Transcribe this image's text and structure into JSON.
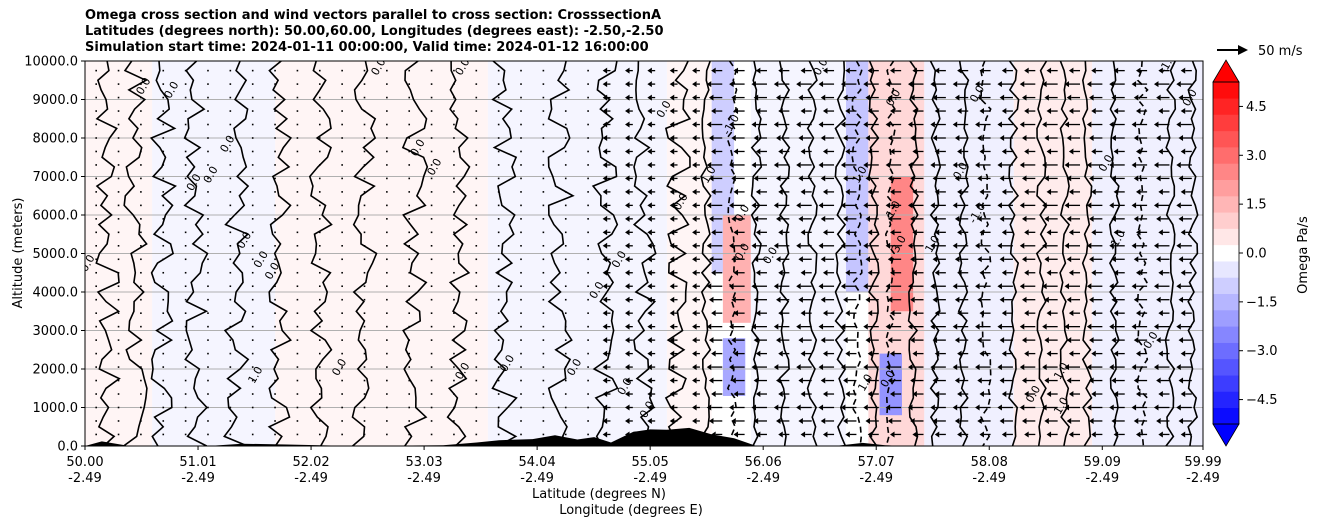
{
  "chart_data": {
    "type": "heatmap",
    "title": [
      "Omega cross section and wind vectors parallel to cross section: CrosssectionA",
      "Latitudes (degrees north): 50.00,60.00, Longitudes (degrees east): -2.50,-2.50",
      "Simulation start time: 2024-01-11 00:00:00, Valid time: 2024-01-12 16:00:00"
    ],
    "xlabel": [
      "Latitude (degrees N)",
      "Longitude (degrees E)"
    ],
    "ylabel": "Altitude (meters)",
    "x_range": [
      50.0,
      59.99
    ],
    "ylim": [
      0,
      10000
    ],
    "x_ticks": [
      {
        "lat": "50.00",
        "lon": "-2.49",
        "value": 50.0
      },
      {
        "lat": "51.01",
        "lon": "-2.49",
        "value": 51.01
      },
      {
        "lat": "52.02",
        "lon": "-2.49",
        "value": 52.02
      },
      {
        "lat": "53.03",
        "lon": "-2.49",
        "value": 53.03
      },
      {
        "lat": "54.04",
        "lon": "-2.49",
        "value": 54.04
      },
      {
        "lat": "55.05",
        "lon": "-2.49",
        "value": 55.05
      },
      {
        "lat": "56.06",
        "lon": "-2.49",
        "value": 56.06
      },
      {
        "lat": "57.07",
        "lon": "-2.49",
        "value": 57.07
      },
      {
        "lat": "58.08",
        "lon": "-2.49",
        "value": 58.08
      },
      {
        "lat": "59.09",
        "lon": "-2.49",
        "value": 59.09
      },
      {
        "lat": "59.99",
        "lon": "-2.49",
        "value": 59.99
      }
    ],
    "y_ticks": [
      {
        "label": "10000.0",
        "value": 10000
      },
      {
        "label": "9000.0",
        "value": 9000
      },
      {
        "label": "8000.0",
        "value": 8000
      },
      {
        "label": "7000.0",
        "value": 7000
      },
      {
        "label": "6000.0",
        "value": 6000
      },
      {
        "label": "5000.0",
        "value": 5000
      },
      {
        "label": "4000.0",
        "value": 4000
      },
      {
        "label": "3000.0",
        "value": 3000
      },
      {
        "label": "2000.0",
        "value": 2000
      },
      {
        "label": "1000.0",
        "value": 1000
      },
      {
        "label": "0.0",
        "value": 0
      }
    ],
    "grid": "horizontal",
    "colorbar": {
      "label": "Omega Pa/s",
      "range": [
        -5.25,
        5.25
      ],
      "ticks": [
        {
          "label": "4.5",
          "value": 4.5
        },
        {
          "label": "3.0",
          "value": 3.0
        },
        {
          "label": "1.5",
          "value": 1.5
        },
        {
          "label": "0.0",
          "value": 0.0
        },
        {
          "label": "−1.5",
          "value": -1.5
        },
        {
          "label": "−3.0",
          "value": -3.0
        },
        {
          "label": "−4.5",
          "value": -4.5
        }
      ],
      "colormap": "bwr",
      "extend": "both",
      "low_color": "#0000ff",
      "high_color": "#ff0000"
    },
    "quiver_key": {
      "label": "50 m/s",
      "value": 50
    },
    "omega_cells": [
      {
        "x0": 50.0,
        "x1": 50.6,
        "y0": 0,
        "y1": 10000,
        "value": 0.2
      },
      {
        "x0": 50.6,
        "x1": 51.7,
        "y0": 0,
        "y1": 10000,
        "value": -0.2
      },
      {
        "x0": 51.7,
        "x1": 53.6,
        "y0": 0,
        "y1": 10000,
        "value": 0.2
      },
      {
        "x0": 53.6,
        "x1": 55.2,
        "y0": 0,
        "y1": 10000,
        "value": -0.2
      },
      {
        "x0": 55.2,
        "x1": 55.6,
        "y0": 0,
        "y1": 10000,
        "value": 0.2
      },
      {
        "x0": 55.6,
        "x1": 55.8,
        "y0": 4500,
        "y1": 10000,
        "value": -1.0
      },
      {
        "x0": 55.7,
        "x1": 55.95,
        "y0": 3200,
        "y1": 6000,
        "value": 1.6
      },
      {
        "x0": 55.7,
        "x1": 55.9,
        "y0": 1300,
        "y1": 2800,
        "value": -1.8
      },
      {
        "x0": 55.95,
        "x1": 56.8,
        "y0": 0,
        "y1": 10000,
        "value": -0.2
      },
      {
        "x0": 56.8,
        "x1": 57.0,
        "y0": 4000,
        "y1": 10000,
        "value": -1.2
      },
      {
        "x0": 57.0,
        "x1": 57.5,
        "y0": 0,
        "y1": 10000,
        "value": 0.8
      },
      {
        "x0": 57.2,
        "x1": 57.4,
        "y0": 3500,
        "y1": 7000,
        "value": 2.5
      },
      {
        "x0": 57.1,
        "x1": 57.3,
        "y0": 800,
        "y1": 2400,
        "value": -2.2
      },
      {
        "x0": 57.5,
        "x1": 58.3,
        "y0": 0,
        "y1": 10000,
        "value": -0.3
      },
      {
        "x0": 58.3,
        "x1": 59.0,
        "y0": 0,
        "y1": 10000,
        "value": 0.4
      },
      {
        "x0": 59.0,
        "x1": 59.99,
        "y0": 0,
        "y1": 10000,
        "value": -0.3
      }
    ],
    "contour_labels": [
      {
        "text": "0.0",
        "x": 50.05,
        "y": 4700
      },
      {
        "text": "0.0",
        "x": 50.55,
        "y": 9300
      },
      {
        "text": "0.0",
        "x": 50.8,
        "y": 9200
      },
      {
        "text": "0.0",
        "x": 51.0,
        "y": 6800
      },
      {
        "text": "0.0",
        "x": 51.15,
        "y": 7000
      },
      {
        "text": "0.0",
        "x": 51.3,
        "y": 7800
      },
      {
        "text": "0.0",
        "x": 51.45,
        "y": 5300
      },
      {
        "text": "0.0",
        "x": 51.6,
        "y": 4800
      },
      {
        "text": "0.0",
        "x": 51.7,
        "y": 4500
      },
      {
        "text": "1.0",
        "x": 51.55,
        "y": 1800
      },
      {
        "text": "0.0",
        "x": 52.3,
        "y": 2000
      },
      {
        "text": "0.0",
        "x": 52.65,
        "y": 9800
      },
      {
        "text": "0.0",
        "x": 53.0,
        "y": 7700
      },
      {
        "text": "0.0",
        "x": 53.15,
        "y": 7200
      },
      {
        "text": "0.0",
        "x": 53.4,
        "y": 9800
      },
      {
        "text": "0.0",
        "x": 53.4,
        "y": 1900
      },
      {
        "text": "0.0",
        "x": 53.8,
        "y": 2100
      },
      {
        "text": "0.0",
        "x": 54.4,
        "y": 2000
      },
      {
        "text": "0.0",
        "x": 54.6,
        "y": 4000
      },
      {
        "text": "0.0",
        "x": 54.8,
        "y": 4800
      },
      {
        "text": "0.0",
        "x": 54.85,
        "y": 1500
      },
      {
        "text": "0.0",
        "x": 55.05,
        "y": 900
      },
      {
        "text": "0.0",
        "x": 55.2,
        "y": 8700
      },
      {
        "text": "0.0",
        "x": 55.35,
        "y": 6300
      },
      {
        "text": "1.0",
        "x": 55.6,
        "y": 7000
      },
      {
        "text": "0.0",
        "x": 55.9,
        "y": 6000
      },
      {
        "text": "0.0",
        "x": 55.9,
        "y": 5000
      },
      {
        "text": "-1.0",
        "x": 55.8,
        "y": 8300
      },
      {
        "text": "0.0",
        "x": 56.15,
        "y": 4900
      },
      {
        "text": "0.0",
        "x": 56.6,
        "y": 9800
      },
      {
        "text": "1.0",
        "x": 56.95,
        "y": 7000
      },
      {
        "text": "0.0",
        "x": 57.25,
        "y": 9000
      },
      {
        "text": "1.0",
        "x": 57.25,
        "y": 6100
      },
      {
        "text": "3.0",
        "x": 57.3,
        "y": 5200
      },
      {
        "text": "1.0",
        "x": 57.6,
        "y": 5200
      },
      {
        "text": "1.0",
        "x": 57.0,
        "y": 1600
      },
      {
        "text": "0.0",
        "x": 57.2,
        "y": 1700
      },
      {
        "text": "-1.0",
        "x": 58.0,
        "y": 6000
      },
      {
        "text": "0.0",
        "x": 57.85,
        "y": 7100
      },
      {
        "text": "0.0",
        "x": 58.0,
        "y": 9100
      },
      {
        "text": "0.0",
        "x": 58.5,
        "y": 1300
      },
      {
        "text": "1.0",
        "x": 58.75,
        "y": 1900
      },
      {
        "text": "1.0",
        "x": 58.75,
        "y": 1000
      },
      {
        "text": "0.0",
        "x": 59.15,
        "y": 7300
      },
      {
        "text": "-1.0",
        "x": 59.25,
        "y": 5300
      },
      {
        "text": "0.0",
        "x": 59.55,
        "y": 2700
      },
      {
        "text": "-1.0",
        "x": 59.7,
        "y": 9900
      },
      {
        "text": "0.0",
        "x": 59.9,
        "y": 9000
      }
    ],
    "terrain": [
      {
        "x": 50.0,
        "y": 0
      },
      {
        "x": 50.15,
        "y": 120
      },
      {
        "x": 50.4,
        "y": 0
      },
      {
        "x": 51.1,
        "y": 0
      },
      {
        "x": 51.4,
        "y": 60
      },
      {
        "x": 51.8,
        "y": 40
      },
      {
        "x": 52.4,
        "y": 0
      },
      {
        "x": 53.2,
        "y": 20
      },
      {
        "x": 53.5,
        "y": 90
      },
      {
        "x": 53.7,
        "y": 150
      },
      {
        "x": 54.0,
        "y": 180
      },
      {
        "x": 54.2,
        "y": 280
      },
      {
        "x": 54.4,
        "y": 170
      },
      {
        "x": 54.55,
        "y": 230
      },
      {
        "x": 54.7,
        "y": 90
      },
      {
        "x": 54.9,
        "y": 370
      },
      {
        "x": 55.05,
        "y": 430
      },
      {
        "x": 55.2,
        "y": 420
      },
      {
        "x": 55.4,
        "y": 470
      },
      {
        "x": 55.6,
        "y": 300
      },
      {
        "x": 55.8,
        "y": 200
      },
      {
        "x": 56.0,
        "y": 0
      },
      {
        "x": 56.7,
        "y": 0
      },
      {
        "x": 56.95,
        "y": 80
      },
      {
        "x": 57.15,
        "y": 20
      },
      {
        "x": 57.3,
        "y": 0
      },
      {
        "x": 59.99,
        "y": 0
      }
    ]
  }
}
